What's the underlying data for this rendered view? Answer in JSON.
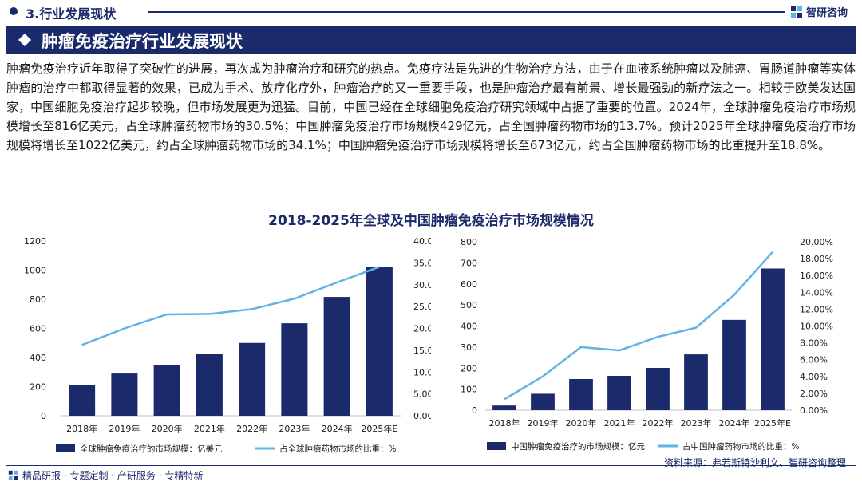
{
  "section": {
    "title": "3.行业发展现状"
  },
  "brand": {
    "name": "智研咨询"
  },
  "banner": {
    "title": "肿瘤免疫治疗行业发展现状"
  },
  "intro": {
    "text": "肿瘤免疫治疗近年取得了突破性的进展，再次成为肿瘤治疗和研究的热点。免疫疗法是先进的生物治疗方法，由于在血液系统肿瘤以及肺癌、胃肠道肿瘤等实体肿瘤的治疗中都取得显著的效果，已成为手术、放疗化疗外，肿瘤治疗的又一重要手段，也是肿瘤治疗最有前景、增长最强劲的新疗法之一。相较于欧美发达国家，中国细胞免疫治疗起步较晚，但市场发展更为迅猛。目前，中国已经在全球细胞免疫治疗研究领域中占据了重要的位置。2024年，全球肿瘤免疫治疗市场规模增长至816亿美元，占全球肿瘤药物市场的30.5%；中国肿瘤免疫治疗市场规模429亿元，占全国肿瘤药物市场的13.7%。预计2025年全球肿瘤免疫治疗市场规模将增长至1022亿美元，约占全球肿瘤药物市场的34.1%；中国肿瘤免疫治疗市场规模将增长至673亿元，约占全国肿瘤药物市场的比重提升至18.8%。"
  },
  "chart_title": "2018-2025年全球及中国肿瘤免疫治疗市场规模情况",
  "chart_data": [
    {
      "type": "bar",
      "categories": [
        "2018年",
        "2019年",
        "2020年",
        "2021年",
        "2022年",
        "2023年",
        "2024年",
        "2025年E"
      ],
      "series": [
        {
          "name": "全球肿瘤免疫治疗的市场规模：亿美元",
          "kind": "bar",
          "axis": "left",
          "values": [
            210,
            290,
            350,
            425,
            500,
            635,
            816,
            1022
          ]
        },
        {
          "name": "占全球肿瘤药物市场的比重：%",
          "kind": "line",
          "axis": "right",
          "values": [
            16.2,
            20.0,
            23.2,
            23.3,
            24.4,
            26.8,
            30.5,
            34.1
          ]
        }
      ],
      "yleft": {
        "min": 0,
        "max": 1200,
        "ticks": [
          "0",
          "200",
          "400",
          "600",
          "800",
          "1000",
          "1200"
        ]
      },
      "yright": {
        "min": 0,
        "max": 40,
        "ticks": [
          "0.00%",
          "5.00%",
          "10.00%",
          "15.00%",
          "20.00%",
          "25.00%",
          "30.00%",
          "35.00%",
          "40.00%"
        ]
      },
      "colors": {
        "bar": "#1b2a6b",
        "line": "#5fb4e5"
      },
      "legend_position": "bottom"
    },
    {
      "type": "bar",
      "categories": [
        "2018年",
        "2019年",
        "2020年",
        "2021年",
        "2022年",
        "2023年",
        "2024年",
        "2025年E"
      ],
      "series": [
        {
          "name": "中国肿瘤免疫治疗的市场规模：亿元",
          "kind": "bar",
          "axis": "left",
          "values": [
            22,
            78,
            148,
            163,
            201,
            265,
            429,
            673
          ]
        },
        {
          "name": "占中国肿瘤药物市场的比重：%",
          "kind": "line",
          "axis": "right",
          "values": [
            1.3,
            4.0,
            7.5,
            7.1,
            8.7,
            9.8,
            13.7,
            18.8
          ]
        }
      ],
      "yleft": {
        "min": 0,
        "max": 800,
        "ticks": [
          "0",
          "100",
          "200",
          "300",
          "400",
          "500",
          "600",
          "700",
          "800"
        ]
      },
      "yright": {
        "min": 0,
        "max": 20,
        "ticks": [
          "0.00%",
          "2.00%",
          "4.00%",
          "6.00%",
          "8.00%",
          "10.00%",
          "12.00%",
          "14.00%",
          "16.00%",
          "18.00%",
          "20.00%"
        ]
      },
      "colors": {
        "bar": "#1b2a6b",
        "line": "#5fb4e5"
      },
      "legend_position": "bottom"
    }
  ],
  "footer": {
    "text": "精品研报 · 专题定制 · 产研服务 · 专精特新"
  },
  "source": {
    "text": "资料来源：弗若斯特沙利文、智研咨询整理"
  },
  "icons": {
    "brand": "brand-logo-icon",
    "banner": "diamond-icon",
    "footer": "brand-logo-icon"
  }
}
